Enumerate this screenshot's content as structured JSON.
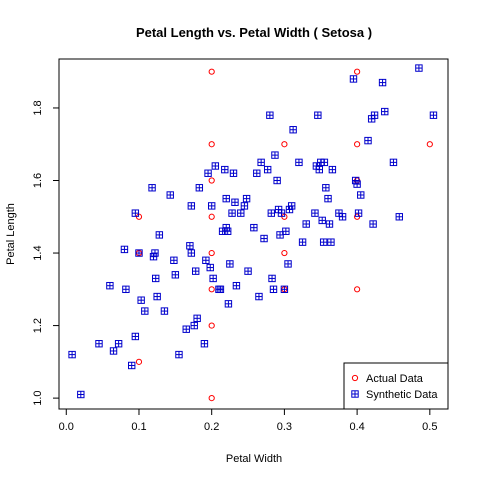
{
  "chart_data": {
    "type": "scatter",
    "title": "Petal Length  vs.  Petal Width  ( Setosa )",
    "xlabel": "Petal Width",
    "ylabel": "Petal Length",
    "xlim": [
      -0.01,
      0.525
    ],
    "ylim": [
      0.97,
      1.935
    ],
    "x_ticks": [
      0.0,
      0.1,
      0.2,
      0.3,
      0.4,
      0.5
    ],
    "x_tick_labels": [
      "0.0",
      "0.1",
      "0.2",
      "0.3",
      "0.4",
      "0.5"
    ],
    "y_ticks": [
      1.0,
      1.2,
      1.4,
      1.6,
      1.8
    ],
    "y_tick_labels": [
      "1.0",
      "1.2",
      "1.4",
      "1.6",
      "1.8"
    ],
    "grid": false,
    "legend_position": "bottom-right",
    "series": [
      {
        "name": "Actual Data",
        "marker": "open-circle",
        "color": "#ff0000",
        "points": [
          [
            0.1,
            1.5
          ],
          [
            0.1,
            1.4
          ],
          [
            0.1,
            1.1
          ],
          [
            0.1,
            1.4
          ],
          [
            0.2,
            1.9
          ],
          [
            0.2,
            1.7
          ],
          [
            0.2,
            1.6
          ],
          [
            0.2,
            1.5
          ],
          [
            0.2,
            1.4
          ],
          [
            0.2,
            1.3
          ],
          [
            0.2,
            1.2
          ],
          [
            0.2,
            1.0
          ],
          [
            0.3,
            1.7
          ],
          [
            0.3,
            1.5
          ],
          [
            0.3,
            1.4
          ],
          [
            0.3,
            1.3
          ],
          [
            0.4,
            1.9
          ],
          [
            0.4,
            1.7
          ],
          [
            0.4,
            1.6
          ],
          [
            0.4,
            1.5
          ],
          [
            0.4,
            1.3
          ],
          [
            0.5,
            1.7
          ]
        ]
      },
      {
        "name": "Synthetic Data",
        "marker": "boxed-plus",
        "color": "#0000cc",
        "points": [
          [
            0.008,
            1.12
          ],
          [
            0.02,
            1.01
          ],
          [
            0.045,
            1.15
          ],
          [
            0.06,
            1.31
          ],
          [
            0.065,
            1.13
          ],
          [
            0.072,
            1.15
          ],
          [
            0.08,
            1.41
          ],
          [
            0.082,
            1.3
          ],
          [
            0.09,
            1.09
          ],
          [
            0.095,
            1.17
          ],
          [
            0.095,
            1.51
          ],
          [
            0.1,
            1.4
          ],
          [
            0.103,
            1.27
          ],
          [
            0.108,
            1.24
          ],
          [
            0.118,
            1.58
          ],
          [
            0.12,
            1.39
          ],
          [
            0.122,
            1.4
          ],
          [
            0.123,
            1.33
          ],
          [
            0.125,
            1.28
          ],
          [
            0.128,
            1.45
          ],
          [
            0.135,
            1.24
          ],
          [
            0.143,
            1.56
          ],
          [
            0.148,
            1.38
          ],
          [
            0.15,
            1.34
          ],
          [
            0.155,
            1.12
          ],
          [
            0.165,
            1.19
          ],
          [
            0.17,
            1.42
          ],
          [
            0.172,
            1.4
          ],
          [
            0.172,
            1.53
          ],
          [
            0.176,
            1.2
          ],
          [
            0.178,
            1.35
          ],
          [
            0.18,
            1.22
          ],
          [
            0.183,
            1.58
          ],
          [
            0.19,
            1.15
          ],
          [
            0.192,
            1.38
          ],
          [
            0.195,
            1.62
          ],
          [
            0.198,
            1.36
          ],
          [
            0.2,
            1.53
          ],
          [
            0.202,
            1.33
          ],
          [
            0.205,
            1.64
          ],
          [
            0.21,
            1.3
          ],
          [
            0.212,
            1.3
          ],
          [
            0.215,
            1.46
          ],
          [
            0.218,
            1.63
          ],
          [
            0.22,
            1.55
          ],
          [
            0.22,
            1.47
          ],
          [
            0.222,
            1.46
          ],
          [
            0.223,
            1.26
          ],
          [
            0.225,
            1.37
          ],
          [
            0.228,
            1.51
          ],
          [
            0.23,
            1.62
          ],
          [
            0.232,
            1.54
          ],
          [
            0.234,
            1.31
          ],
          [
            0.24,
            1.51
          ],
          [
            0.245,
            1.53
          ],
          [
            0.248,
            1.55
          ],
          [
            0.25,
            1.35
          ],
          [
            0.258,
            1.47
          ],
          [
            0.262,
            1.62
          ],
          [
            0.265,
            1.28
          ],
          [
            0.268,
            1.65
          ],
          [
            0.272,
            1.44
          ],
          [
            0.277,
            1.63
          ],
          [
            0.28,
            1.78
          ],
          [
            0.282,
            1.51
          ],
          [
            0.283,
            1.33
          ],
          [
            0.285,
            1.3
          ],
          [
            0.287,
            1.67
          ],
          [
            0.29,
            1.6
          ],
          [
            0.292,
            1.52
          ],
          [
            0.294,
            1.45
          ],
          [
            0.296,
            1.51
          ],
          [
            0.3,
            1.3
          ],
          [
            0.302,
            1.46
          ],
          [
            0.305,
            1.37
          ],
          [
            0.307,
            1.52
          ],
          [
            0.31,
            1.53
          ],
          [
            0.312,
            1.74
          ],
          [
            0.32,
            1.65
          ],
          [
            0.325,
            1.43
          ],
          [
            0.33,
            1.48
          ],
          [
            0.342,
            1.51
          ],
          [
            0.344,
            1.64
          ],
          [
            0.346,
            1.78
          ],
          [
            0.348,
            1.63
          ],
          [
            0.35,
            1.65
          ],
          [
            0.352,
            1.49
          ],
          [
            0.354,
            1.43
          ],
          [
            0.355,
            1.65
          ],
          [
            0.357,
            1.58
          ],
          [
            0.36,
            1.55
          ],
          [
            0.362,
            1.48
          ],
          [
            0.364,
            1.43
          ],
          [
            0.366,
            1.63
          ],
          [
            0.375,
            1.51
          ],
          [
            0.38,
            1.5
          ],
          [
            0.395,
            1.88
          ],
          [
            0.398,
            1.6
          ],
          [
            0.4,
            1.59
          ],
          [
            0.402,
            1.51
          ],
          [
            0.405,
            1.56
          ],
          [
            0.415,
            1.71
          ],
          [
            0.42,
            1.77
          ],
          [
            0.422,
            1.48
          ],
          [
            0.424,
            1.78
          ],
          [
            0.435,
            1.87
          ],
          [
            0.438,
            1.79
          ],
          [
            0.45,
            1.65
          ],
          [
            0.458,
            1.5
          ],
          [
            0.485,
            1.91
          ],
          [
            0.505,
            1.78
          ]
        ]
      }
    ]
  }
}
